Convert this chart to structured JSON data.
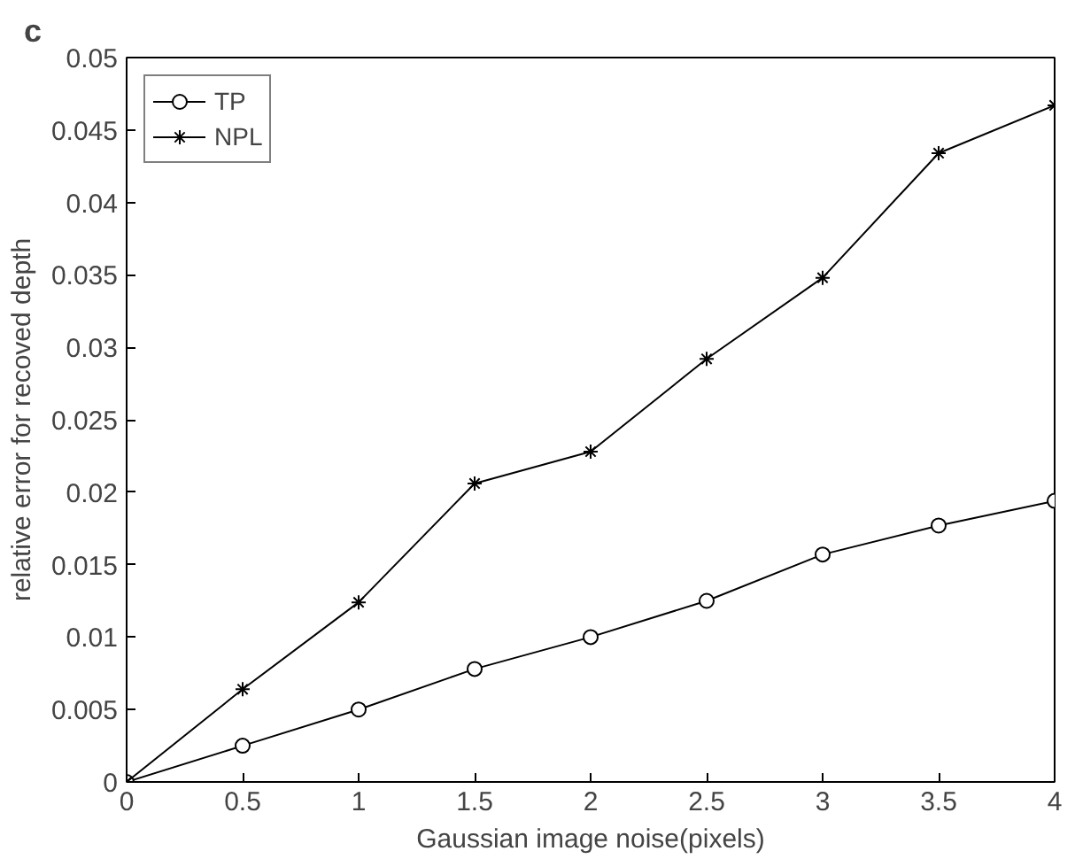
{
  "chart_data": {
    "type": "line",
    "title": "c",
    "xlabel": "Gaussian image noise(pixels)",
    "ylabel": "relative error for recoved depth",
    "x": [
      0,
      0.5,
      1,
      1.5,
      2,
      2.5,
      3,
      3.5,
      4
    ],
    "series": [
      {
        "name": "TP",
        "color": "#000000",
        "marker": "circle",
        "values": [
          0,
          0.0025,
          0.005,
          0.0078,
          0.01,
          0.0125,
          0.0157,
          0.0177,
          0.0194
        ]
      },
      {
        "name": "NPL",
        "color": "#000000",
        "marker": "cross",
        "values": [
          0,
          0.0064,
          0.0124,
          0.0206,
          0.0228,
          0.0292,
          0.0348,
          0.0434,
          0.0467
        ]
      }
    ],
    "xlim": [
      0,
      4
    ],
    "ylim": [
      0,
      0.05
    ],
    "xticks": [
      0,
      0.5,
      1,
      1.5,
      2,
      2.5,
      3,
      3.5,
      4
    ],
    "yticks": [
      0,
      0.005,
      0.01,
      0.015,
      0.02,
      0.025,
      0.03,
      0.035,
      0.04,
      0.045,
      0.05
    ],
    "grid": false,
    "legend": "top left",
    "line_style": "solid"
  }
}
